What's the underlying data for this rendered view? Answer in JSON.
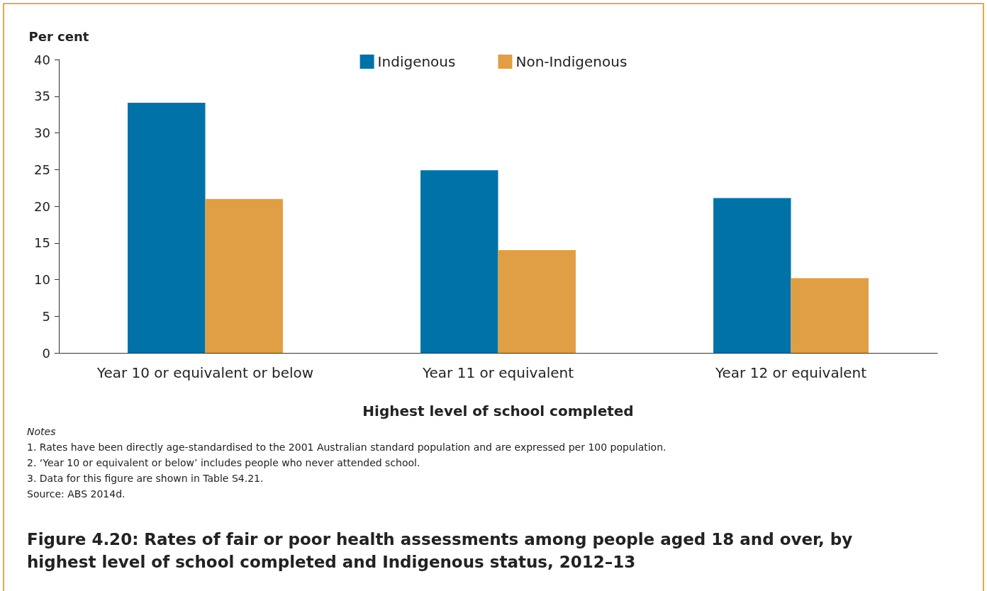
{
  "chart_data": {
    "type": "bar",
    "title": "Figure 4.20: Rates of fair or poor health assessments among people aged 18 and over, by highest level of school completed and Indigenous status, 2012–13",
    "xlabel": "Highest level of school completed",
    "ylabel": "Per cent",
    "categories": [
      "Year 10 or equivalent or below",
      "Year 11 or equivalent",
      "Year 12 or equivalent"
    ],
    "series": [
      {
        "name": "Indigenous",
        "color": "#0072a8",
        "values": [
          34.1,
          24.9,
          21.1
        ]
      },
      {
        "name": "Non-Indigenous",
        "color": "#e09e45",
        "values": [
          21.0,
          14.0,
          10.2
        ]
      }
    ],
    "ylim": [
      0,
      40
    ],
    "yticks": [
      0,
      5,
      10,
      15,
      20,
      25,
      30,
      35,
      40
    ],
    "grid": false,
    "legend": "top",
    "annotations": [
      "Notes",
      "1.   Rates have been directly age-standardised to the 2001 Australian standard population and are expressed per 100 population.",
      "2.   ‘Year 10 or equivalent or below’ includes people who never attended school.",
      "3.   Data for this figure are shown in Table S4.21.",
      "Source: ABS 2014d."
    ]
  }
}
